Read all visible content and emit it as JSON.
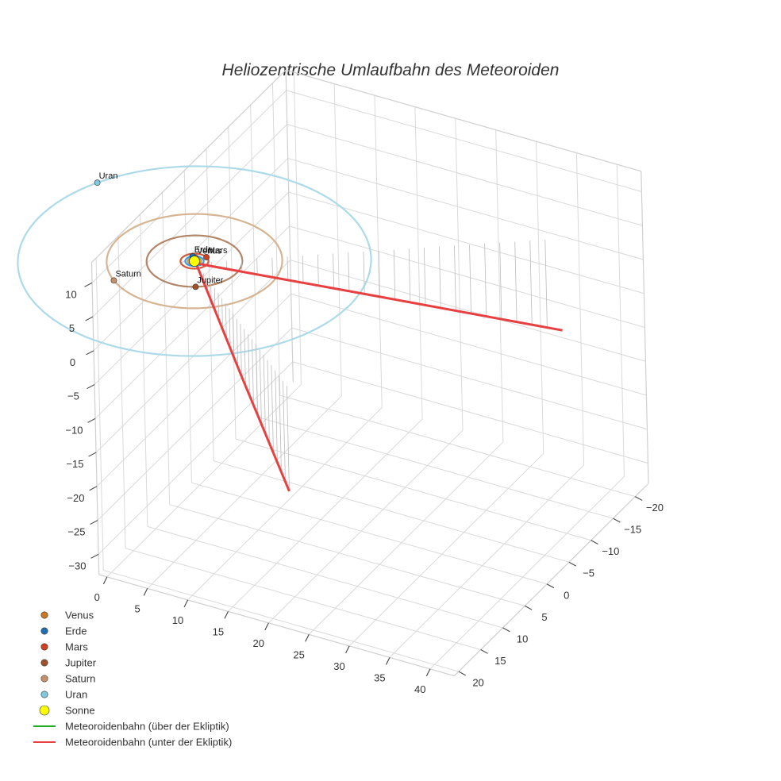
{
  "chart_data": {
    "type": "scatter3d",
    "title": "Heliozentrische Umlaufbahn des Meteoroiden",
    "axes": {
      "x": {
        "ticks": [
          0,
          5,
          10,
          15,
          20,
          25,
          30,
          35,
          40
        ],
        "range": [
          -1,
          43
        ]
      },
      "y": {
        "ticks": [
          -20,
          -15,
          -10,
          -5,
          0,
          5,
          10,
          15,
          20
        ],
        "range": [
          -23,
          21
        ]
      },
      "z": {
        "ticks": [
          10,
          5,
          0,
          -5,
          -10,
          -15,
          -20,
          -25,
          -30
        ],
        "range": [
          -33,
          13
        ]
      },
      "grid": true,
      "backgrounds": false
    },
    "sun": {
      "name": "Sonne",
      "color": "#ffff00",
      "x": 0,
      "y": 0,
      "z": 0
    },
    "planets": [
      {
        "name": "Venus",
        "color": "#cc7722",
        "orbit_color": "#cc8844",
        "radius": 0.72,
        "angle_deg": 250
      },
      {
        "name": "Erde",
        "color": "#1f6fb4",
        "orbit_color": "#3399dd",
        "radius": 1.0,
        "angle_deg": 230
      },
      {
        "name": "Mars",
        "color": "#d04020",
        "orbit_color": "#d05030",
        "radius": 1.52,
        "angle_deg": 300
      },
      {
        "name": "Jupiter",
        "color": "#a0522d",
        "orbit_color": "#b08060",
        "radius": 5.2,
        "angle_deg": 60
      },
      {
        "name": "Saturn",
        "color": "#c89068",
        "orbit_color": "#d4b08c",
        "radius": 9.54,
        "angle_deg": 128
      },
      {
        "name": "Uran",
        "color": "#80c8e0",
        "orbit_color": "#a8d8e8",
        "radius": 19.2,
        "angle_deg": 208
      }
    ],
    "series": [
      {
        "name": "Meteoroidenbahn (über der Ekliptik)",
        "color": "#22aa22",
        "points": []
      },
      {
        "name": "Meteoroidenbahn (unter der Ekliptik)",
        "color": "#e84040",
        "points": [
          [
            21,
            17.5,
            -15.5
          ],
          [
            10.5,
            8.8,
            -7.8
          ],
          [
            0.3,
            0.2,
            -0.1
          ],
          [
            16.7,
            -11.2,
            -6.8
          ],
          [
            33,
            -22.5,
            -13.5
          ]
        ]
      }
    ],
    "legend": {
      "position": "bottom-left"
    }
  }
}
